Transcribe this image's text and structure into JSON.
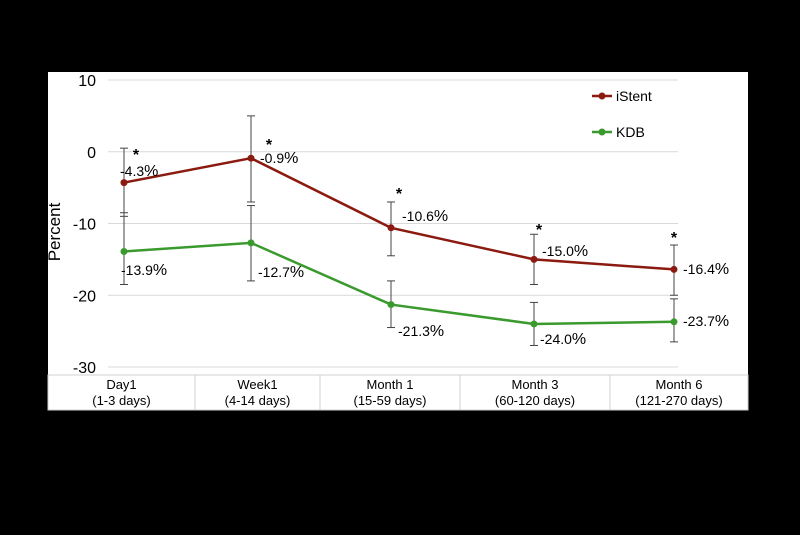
{
  "chart_data": {
    "type": "line",
    "ylabel": "Percent",
    "ylim": [
      -30,
      10
    ],
    "yticks": [
      10,
      0,
      -10,
      -20,
      -30
    ],
    "grid": true,
    "legend_position": "top-right",
    "categories": [
      {
        "line1": "Day1",
        "line2": "(1-3 days)"
      },
      {
        "line1": "Week1",
        "line2": "(4-14 days)"
      },
      {
        "line1": "Month 1",
        "line2": "(15-59 days)"
      },
      {
        "line1": "Month 3",
        "line2": "(60-120 days)"
      },
      {
        "line1": "Month 6",
        "line2": "(121-270 days)"
      }
    ],
    "series": [
      {
        "name": "iStent",
        "color": "#8b1a10",
        "values": [
          -4.3,
          -0.9,
          -10.6,
          -15.0,
          -16.4
        ],
        "labels": [
          "-4.3",
          "-0.9",
          "-10.6",
          "-15.0",
          "-16.4"
        ],
        "error_low": [
          -9.0,
          -7.0,
          -14.5,
          -18.5,
          -20.0
        ],
        "error_high": [
          0.5,
          5.0,
          -7.0,
          -11.5,
          -13.0
        ]
      },
      {
        "name": "KDB",
        "color": "#3a9a2e",
        "values": [
          -13.9,
          -12.7,
          -21.3,
          -24.0,
          -23.7
        ],
        "labels": [
          "-13.9",
          "-12.7",
          "-21.3",
          "-24.0",
          "-23.7"
        ],
        "error_low": [
          -18.5,
          -18.0,
          -24.5,
          -27.0,
          -26.5
        ],
        "error_high": [
          -8.5,
          -7.5,
          -18.0,
          -21.0,
          -20.5
        ]
      }
    ],
    "percent_sign": "%",
    "significance_marker": "*",
    "significant": [
      true,
      true,
      true,
      true,
      true
    ]
  }
}
